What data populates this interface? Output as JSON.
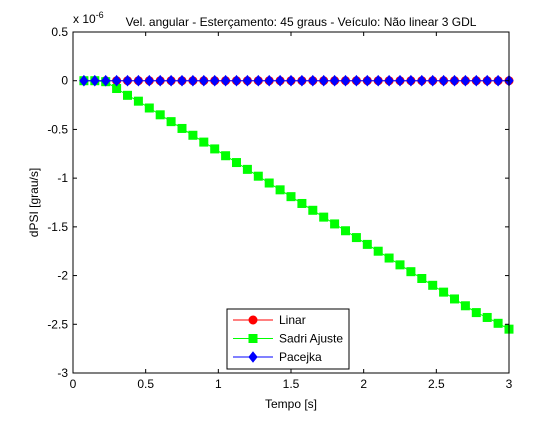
{
  "chart_data": {
    "type": "line",
    "title": "Vel. angular - Esterçamento: 45 graus - Veículo: Não linear 3 GDL",
    "xlabel": "Tempo [s]",
    "ylabel": "dPSI [grau/s]",
    "y_multiplier": "x 10",
    "y_multiplier_exponent": "-6",
    "xlim": [
      0,
      3
    ],
    "ylim": [
      -3,
      0.5
    ],
    "x_ticks": [
      0,
      0.5,
      1,
      1.5,
      2,
      2.5,
      3
    ],
    "x_tick_labels": [
      "0",
      "0.5",
      "1",
      "1.5",
      "2",
      "2.5",
      "3"
    ],
    "y_ticks": [
      -3,
      -2.5,
      -2,
      -1.5,
      -1,
      -0.5,
      0,
      0.5
    ],
    "y_tick_labels": [
      "-3",
      "-2.5",
      "-2",
      "-1.5",
      "-1",
      "-0.5",
      "0",
      "0.5"
    ],
    "grid": false,
    "legend_position": "bottom-center",
    "series": [
      {
        "name": "Linar",
        "color": "#ff0000",
        "marker": "circle",
        "x": [
          0.075,
          0.15,
          0.225,
          0.3,
          0.375,
          0.45,
          0.525,
          0.6,
          0.675,
          0.75,
          0.825,
          0.9,
          0.975,
          1.05,
          1.125,
          1.2,
          1.275,
          1.35,
          1.425,
          1.5,
          1.575,
          1.65,
          1.725,
          1.8,
          1.875,
          1.95,
          2.025,
          2.1,
          2.175,
          2.25,
          2.325,
          2.4,
          2.475,
          2.55,
          2.625,
          2.7,
          2.775,
          2.85,
          2.925,
          3.0
        ],
        "y": [
          0,
          0,
          0,
          0,
          0,
          0,
          0,
          0,
          0,
          0,
          0,
          0,
          0,
          0,
          0,
          0,
          0,
          0,
          0,
          0,
          0,
          0,
          0,
          0,
          0,
          0,
          0,
          0,
          0,
          0,
          0,
          0,
          0,
          0,
          0,
          0,
          0,
          0,
          0,
          0
        ]
      },
      {
        "name": "Sadri Ajuste",
        "color": "#00ff00",
        "marker": "square",
        "x": [
          0.075,
          0.15,
          0.225,
          0.3,
          0.375,
          0.45,
          0.525,
          0.6,
          0.675,
          0.75,
          0.825,
          0.9,
          0.975,
          1.05,
          1.125,
          1.2,
          1.275,
          1.35,
          1.425,
          1.5,
          1.575,
          1.65,
          1.725,
          1.8,
          1.875,
          1.95,
          2.025,
          2.1,
          2.175,
          2.25,
          2.325,
          2.4,
          2.475,
          2.55,
          2.625,
          2.7,
          2.775,
          2.85,
          2.925,
          3.0
        ],
        "y": [
          0,
          0,
          -0.01,
          -0.08,
          -0.15,
          -0.21,
          -0.28,
          -0.35,
          -0.42,
          -0.49,
          -0.56,
          -0.63,
          -0.7,
          -0.77,
          -0.84,
          -0.91,
          -0.98,
          -1.05,
          -1.12,
          -1.19,
          -1.26,
          -1.33,
          -1.4,
          -1.47,
          -1.54,
          -1.61,
          -1.68,
          -1.75,
          -1.82,
          -1.89,
          -1.96,
          -2.03,
          -2.1,
          -2.17,
          -2.24,
          -2.31,
          -2.38,
          -2.43,
          -2.49,
          -2.55
        ]
      },
      {
        "name": "Pacejka",
        "color": "#0000ff",
        "marker": "diamond",
        "x": [
          0.075,
          0.15,
          0.225,
          0.3,
          0.375,
          0.45,
          0.525,
          0.6,
          0.675,
          0.75,
          0.825,
          0.9,
          0.975,
          1.05,
          1.125,
          1.2,
          1.275,
          1.35,
          1.425,
          1.5,
          1.575,
          1.65,
          1.725,
          1.8,
          1.875,
          1.95,
          2.025,
          2.1,
          2.175,
          2.25,
          2.325,
          2.4,
          2.475,
          2.55,
          2.625,
          2.7,
          2.775,
          2.85,
          2.925,
          3.0
        ],
        "y": [
          0,
          0,
          0,
          0,
          0,
          0,
          0,
          0,
          0,
          0,
          0,
          0,
          0,
          0,
          0,
          0,
          0,
          0,
          0,
          0,
          0,
          0,
          0,
          0,
          0,
          0,
          0,
          0,
          0,
          0,
          0,
          0,
          0,
          0,
          0,
          0,
          0,
          0,
          0,
          0
        ]
      }
    ]
  }
}
